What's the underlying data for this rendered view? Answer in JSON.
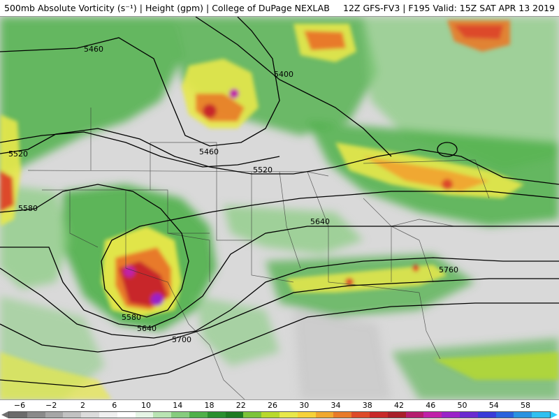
{
  "header": {
    "title": "500mb Absolute Vorticity (s⁻¹) | Height (gpm) | College of DuPage NEXLAB",
    "model_run": "12Z GFS-FV3 | F195 Valid: 15Z SAT APR 13 2019"
  },
  "contours": {
    "labels": [
      "5460",
      "5400",
      "5460",
      "5520",
      "5520",
      "5580",
      "5580",
      "5640",
      "5640",
      "5700",
      "5760"
    ]
  },
  "colorbar": {
    "ticks": [
      "−6",
      "−2",
      "2",
      "6",
      "10",
      "14",
      "18",
      "22",
      "26",
      "30",
      "34",
      "38",
      "42",
      "46",
      "50",
      "54",
      "58"
    ],
    "colors": [
      "#6b6b6b",
      "#8a8a8a",
      "#a6a6a6",
      "#c2c2c2",
      "#dcdcdc",
      "#f0f0f0",
      "#ffffff",
      "#e6f5e6",
      "#b9e4b3",
      "#86cc7e",
      "#4fb04a",
      "#2a8f2f",
      "#1e7a22",
      "#7cc33a",
      "#b8d92c",
      "#e8e84a",
      "#f6d23a",
      "#f0a830",
      "#e87a2a",
      "#dd4a2a",
      "#c8282a",
      "#a81e2a",
      "#b51c6e",
      "#c020a8",
      "#9a22c8",
      "#6a2ad0",
      "#3a3ad8",
      "#2a62dc",
      "#2a92e0",
      "#30c0f0"
    ],
    "under_color": "#707070",
    "over_color": "#30d0ff"
  }
}
